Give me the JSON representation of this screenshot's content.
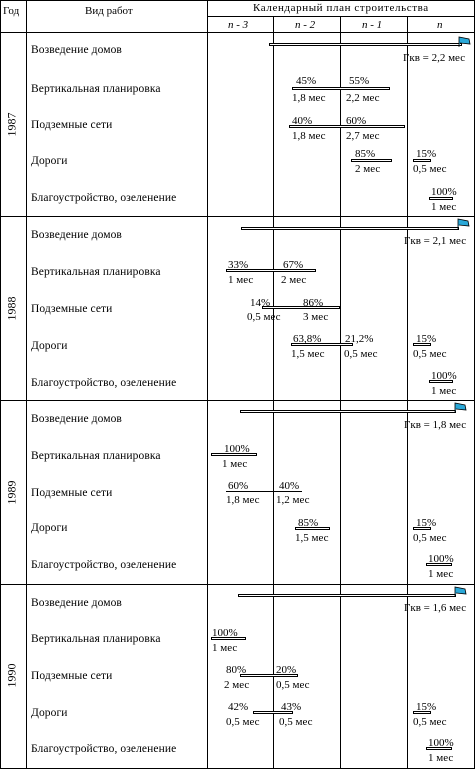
{
  "header": {
    "col_year": "Год",
    "col_work": "Вид работ",
    "col_plan": "Календарный план строительства",
    "periods": [
      "n - 3",
      "n - 2",
      "n - 1",
      "n"
    ]
  },
  "years": [
    {
      "year": "1987",
      "works": [
        {
          "name": "Возведение домов",
          "note": "Гкв = 2,2 мес"
        },
        {
          "name": "Вертикальная планировка",
          "labels": [
            {
              "pct": "45%",
              "dur": "1,8 мес"
            },
            {
              "pct": "55%",
              "dur": "2,2 мес"
            }
          ]
        },
        {
          "name": "Подземные сети",
          "labels": [
            {
              "pct": "40%",
              "dur": "1,8 мес"
            },
            {
              "pct": "60%",
              "dur": "2,7 мес"
            }
          ]
        },
        {
          "name": "Дороги",
          "labels": [
            {
              "pct": "85%",
              "dur": "2 мес"
            },
            {
              "pct": "15%",
              "dur": "0,5 мес"
            }
          ]
        },
        {
          "name": "Благоустройство, озеленение",
          "labels": [
            {
              "pct": "100%",
              "dur": "1 мес"
            }
          ]
        }
      ]
    },
    {
      "year": "1988",
      "works": [
        {
          "name": "Возведение домов",
          "note": "Гкв = 2,1 мес"
        },
        {
          "name": "Вертикальная планировка",
          "labels": [
            {
              "pct": "33%",
              "dur": "1 мес"
            },
            {
              "pct": "67%",
              "dur": "2 мес"
            }
          ]
        },
        {
          "name": "Подземные сети",
          "labels": [
            {
              "pct": "14%",
              "dur": "0,5 мес"
            },
            {
              "pct": "86%",
              "dur": "3 мес"
            }
          ]
        },
        {
          "name": "Дороги",
          "labels": [
            {
              "pct": "63,8%",
              "dur": "1,5 мес"
            },
            {
              "pct": "21,2%",
              "dur": "0,5 мес"
            },
            {
              "pct": "15%",
              "dur": "0,5 мес"
            }
          ]
        },
        {
          "name": "Благоустройство, озеленение",
          "labels": [
            {
              "pct": "100%",
              "dur": "1 мес"
            }
          ]
        }
      ]
    },
    {
      "year": "1989",
      "works": [
        {
          "name": "Возведение домов",
          "note": "Гкв = 1,8 мес"
        },
        {
          "name": "Вертикальная планировка",
          "labels": [
            {
              "pct": "100%",
              "dur": "1 мес"
            }
          ]
        },
        {
          "name": "Подземные сети",
          "labels": [
            {
              "pct": "60%",
              "dur": "1,8 мес"
            },
            {
              "pct": "40%",
              "dur": "1,2 мес"
            }
          ]
        },
        {
          "name": "Дороги",
          "labels": [
            {
              "pct": "85%",
              "dur": "1,5 мес"
            },
            {
              "pct": "15%",
              "dur": "0,5 мес"
            }
          ]
        },
        {
          "name": "Благоустройство, озеленение",
          "labels": [
            {
              "pct": "100%",
              "dur": "1 мес"
            }
          ]
        }
      ]
    },
    {
      "year": "1990",
      "works": [
        {
          "name": "Возведение домов",
          "note": "Гкв = 1,6 мес"
        },
        {
          "name": "Вертикальная планировка",
          "labels": [
            {
              "pct": "100%",
              "dur": "1 мес"
            }
          ]
        },
        {
          "name": "Подземные сети",
          "labels": [
            {
              "pct": "80%",
              "dur": "2 мес"
            },
            {
              "pct": "20%",
              "dur": "0,5 мес"
            }
          ]
        },
        {
          "name": "Дороги",
          "labels": [
            {
              "pct": "42%",
              "dur": "0,5 мес"
            },
            {
              "pct": "43%",
              "dur": "0,5 мес"
            },
            {
              "pct": "15%",
              "dur": "0,5 мес"
            }
          ]
        },
        {
          "name": "Благоустройство, озеленение",
          "labels": [
            {
              "pct": "100%",
              "dur": "1 мес"
            }
          ]
        }
      ]
    }
  ],
  "colors": {
    "flag": "#2aa8d8",
    "line": "#000000"
  }
}
